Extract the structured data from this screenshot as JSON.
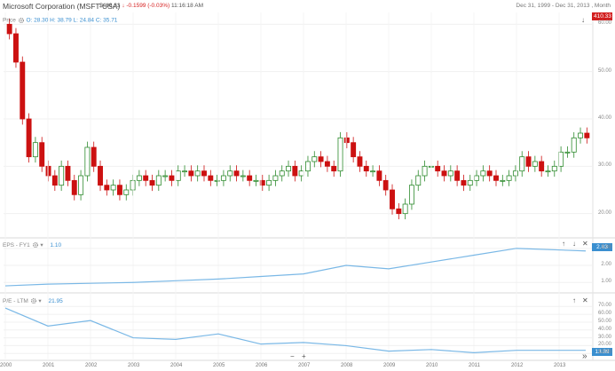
{
  "header": {
    "title": "Microsoft Corporation (MSFT-USA)",
    "price": "$416.33",
    "change": "-0.1599 (-0.03%)",
    "timestamp": "11:16:18 AM",
    "date_range": "Dec 31, 1999 - Dec 31, 2013 , Month"
  },
  "panels": {
    "price": {
      "title": "Price",
      "ohlc": "O: 28.30  H: 38.79  L: 24.84  C: 35.71",
      "badge": "410.33"
    },
    "eps": {
      "title": "EPS - FY1",
      "value": "1.10",
      "badge": "2.83"
    },
    "pe": {
      "title": "P/E - LTM",
      "value": "21.95",
      "badge": "13.89"
    }
  },
  "controls": {
    "zoom_out": "−",
    "zoom_in": "+",
    "up": "↑",
    "down": "↓",
    "close": "✕",
    "forward": "»"
  },
  "colors": {
    "up": "#2e8b2e",
    "down": "#cc1111",
    "line": "#7ab8e6",
    "accent": "#3a8fd0"
  },
  "chart_data": [
    {
      "type": "candlestick",
      "title": "Price",
      "x_ticks": [
        "2000",
        "2001",
        "2002",
        "2003",
        "2004",
        "2005",
        "2006",
        "2007",
        "2008",
        "2009",
        "2010",
        "2011",
        "2012",
        "2013"
      ],
      "y_ticks": [
        "60.00",
        "50.00",
        "40.00",
        "30.00",
        "20.00"
      ],
      "ylim": [
        16,
        61
      ],
      "series_close": [
        58,
        52,
        40,
        32,
        35,
        30,
        28,
        26,
        30,
        27,
        24,
        28,
        34,
        30,
        26,
        25,
        26,
        24,
        25,
        27,
        28,
        27,
        26,
        28,
        28,
        27,
        29,
        29,
        28,
        29,
        28,
        27,
        27,
        28,
        29,
        28,
        28,
        27,
        27,
        26,
        27,
        28,
        29,
        30,
        28,
        29,
        31,
        32,
        31,
        30,
        29,
        36,
        35,
        32,
        30,
        29,
        29,
        27,
        25,
        21,
        20,
        22,
        26,
        28,
        30,
        30,
        29,
        28,
        29,
        27,
        26,
        27,
        28,
        29,
        28,
        27,
        27,
        28,
        29,
        32,
        30,
        31,
        29,
        29,
        30,
        33,
        33,
        36,
        37,
        36
      ]
    },
    {
      "type": "line",
      "title": "EPS - FY1",
      "y_ticks": [
        "3.00",
        "2.00",
        "1.00"
      ],
      "ylim": [
        0.7,
        3.2
      ],
      "x": [
        2000,
        2001,
        2002,
        2003,
        2004,
        2005,
        2006,
        2007,
        2008,
        2009,
        2010,
        2011,
        2012,
        2013
      ],
      "values": [
        0.8,
        0.9,
        0.95,
        1.0,
        1.1,
        1.2,
        1.35,
        1.5,
        2.0,
        1.8,
        2.2,
        2.6,
        3.0,
        2.85
      ]
    },
    {
      "type": "line",
      "title": "P/E - LTM",
      "y_ticks": [
        "70.00",
        "60.00",
        "50.00",
        "40.00",
        "30.00",
        "20.00",
        "10.00"
      ],
      "ylim": [
        8,
        76
      ],
      "x": [
        2000,
        2001,
        2002,
        2003,
        2004,
        2005,
        2006,
        2007,
        2008,
        2009,
        2010,
        2011,
        2012,
        2013
      ],
      "values": [
        68,
        45,
        52,
        30,
        28,
        35,
        22,
        24,
        20,
        13,
        15,
        11,
        14,
        14
      ]
    }
  ]
}
